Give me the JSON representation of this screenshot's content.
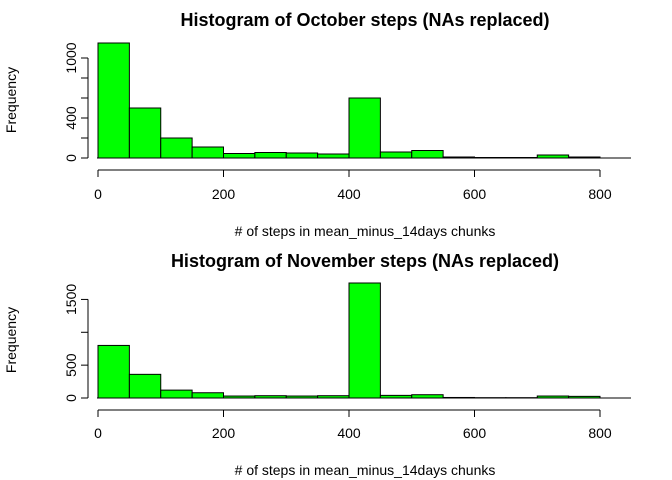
{
  "chart_data": [
    {
      "type": "bar",
      "title": "Histogram of October steps (NAs replaced)",
      "xlabel": "# of steps in mean_minus_14days chunks",
      "ylabel": "Frequency",
      "bar_color": "#00ff00",
      "bin_edges": [
        0,
        50,
        100,
        150,
        200,
        250,
        300,
        350,
        400,
        450,
        500,
        550,
        600,
        650,
        700,
        750,
        800
      ],
      "values": [
        1150,
        500,
        200,
        110,
        45,
        55,
        50,
        40,
        600,
        60,
        75,
        10,
        5,
        5,
        30,
        10
      ],
      "xlim": [
        0,
        800
      ],
      "ylim": [
        0,
        1150
      ],
      "xticks": [
        0,
        200,
        400,
        600,
        800
      ],
      "xtick_labels": [
        "0",
        "200",
        "400",
        "600",
        "800"
      ],
      "yticks": [
        0,
        200,
        400,
        600,
        800,
        1000
      ],
      "ytick_labels": [
        "0",
        "",
        "400",
        "",
        "",
        "1000"
      ]
    },
    {
      "type": "bar",
      "title": "Histogram of November steps (NAs replaced)",
      "xlabel": "# of steps in mean_minus_14days chunks",
      "ylabel": "Frequency",
      "bar_color": "#00ff00",
      "bin_edges": [
        0,
        50,
        100,
        150,
        200,
        250,
        300,
        350,
        400,
        450,
        500,
        550,
        600,
        650,
        700,
        750,
        800
      ],
      "values": [
        800,
        360,
        120,
        80,
        30,
        35,
        30,
        35,
        1750,
        40,
        50,
        8,
        5,
        5,
        30,
        25
      ],
      "xlim": [
        0,
        800
      ],
      "ylim": [
        0,
        1750
      ],
      "xticks": [
        0,
        200,
        400,
        600,
        800
      ],
      "xtick_labels": [
        "0",
        "200",
        "400",
        "600",
        "800"
      ],
      "yticks": [
        0,
        500,
        1000,
        1500
      ],
      "ytick_labels": [
        "0",
        "500",
        "",
        "1500"
      ]
    }
  ]
}
